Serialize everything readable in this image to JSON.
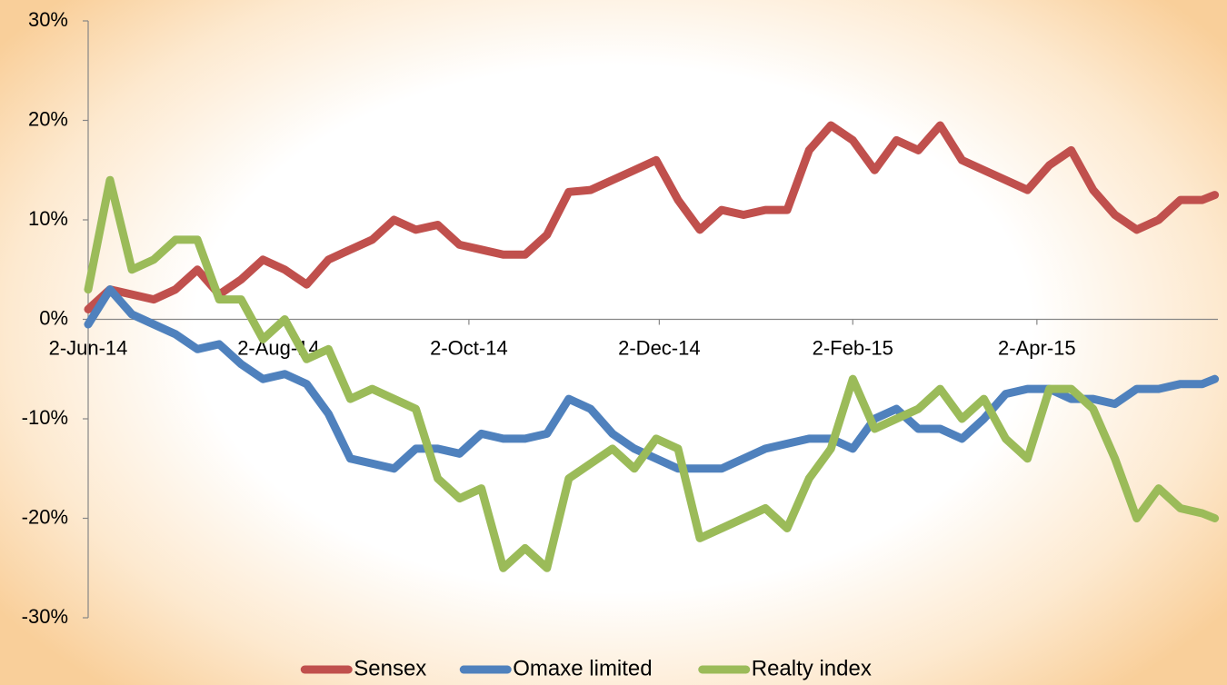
{
  "chart_data": {
    "type": "line",
    "x": [
      "2014-06-02",
      "2014-06-09",
      "2014-06-16",
      "2014-06-23",
      "2014-06-30",
      "2014-07-07",
      "2014-07-14",
      "2014-07-21",
      "2014-07-28",
      "2014-08-04",
      "2014-08-11",
      "2014-08-18",
      "2014-08-25",
      "2014-09-01",
      "2014-09-08",
      "2014-09-15",
      "2014-09-22",
      "2014-09-29",
      "2014-10-06",
      "2014-10-13",
      "2014-10-20",
      "2014-10-27",
      "2014-11-03",
      "2014-11-10",
      "2014-11-17",
      "2014-11-24",
      "2014-12-01",
      "2014-12-08",
      "2014-12-15",
      "2014-12-22",
      "2014-12-29",
      "2015-01-05",
      "2015-01-12",
      "2015-01-19",
      "2015-01-26",
      "2015-02-02",
      "2015-02-09",
      "2015-02-16",
      "2015-02-23",
      "2015-03-02",
      "2015-03-09",
      "2015-03-16",
      "2015-03-23",
      "2015-03-30",
      "2015-04-06",
      "2015-04-13",
      "2015-04-20",
      "2015-04-27",
      "2015-05-04",
      "2015-05-11",
      "2015-05-18",
      "2015-05-25",
      "2015-05-29"
    ],
    "series": [
      {
        "name": "Sensex",
        "color": "#c0504d",
        "values": [
          1,
          3,
          2.5,
          2,
          3,
          5,
          2.5,
          4,
          6,
          5,
          3.5,
          6,
          7,
          8,
          10,
          9,
          9.5,
          7.5,
          7,
          6.5,
          6.5,
          8.5,
          12.8,
          13,
          14,
          15,
          16,
          12,
          9,
          11,
          10.5,
          11,
          11,
          17,
          19.5,
          18,
          15,
          18,
          17,
          19.5,
          16,
          15,
          14,
          13,
          15.5,
          17,
          13,
          10.5,
          9,
          10,
          12,
          12,
          12.5
        ]
      },
      {
        "name": "Omaxe limited",
        "color": "#4f81bd",
        "values": [
          -0.5,
          3,
          0.5,
          -0.5,
          -1.5,
          -3,
          -2.5,
          -4.5,
          -6,
          -5.5,
          -6.5,
          -9.5,
          -14,
          -14.5,
          -15,
          -13,
          -13,
          -13.5,
          -11.5,
          -12,
          -12,
          -11.5,
          -8,
          -9,
          -11.5,
          -13,
          -14,
          -15,
          -15,
          -15,
          -14,
          -13,
          -12.5,
          -12,
          -12,
          -13,
          -10,
          -9,
          -11,
          -11,
          -12,
          -10,
          -7.5,
          -7,
          -7,
          -8,
          -8,
          -8.5,
          -7,
          -7,
          -6.5,
          -6.5,
          -6
        ]
      },
      {
        "name": "Realty index",
        "color": "#9bbb59",
        "values": [
          3,
          14,
          5,
          6,
          8,
          8,
          2,
          2,
          -2,
          0,
          -4,
          -3,
          -8,
          -7,
          -8,
          -9,
          -16,
          -18,
          -17,
          -25,
          -23,
          -25,
          -16,
          -14.5,
          -13,
          -15,
          -12,
          -13,
          -22,
          -21,
          -20,
          -19,
          -21,
          -16,
          -13,
          -6,
          -11,
          -10,
          -9,
          -7,
          -10,
          -8,
          -12,
          -14,
          -7,
          -7,
          -9,
          -14,
          -20,
          -17,
          -19,
          -19.5,
          -20
        ]
      }
    ],
    "xlim": [
      "2014-06-02",
      "2015-05-30"
    ],
    "xticks": [
      {
        "value": "2014-06-02",
        "label": "2-Jun-14"
      },
      {
        "value": "2014-08-02",
        "label": "2-Aug-14"
      },
      {
        "value": "2014-10-02",
        "label": "2-Oct-14"
      },
      {
        "value": "2014-12-02",
        "label": "2-Dec-14"
      },
      {
        "value": "2015-02-02",
        "label": "2-Feb-15"
      },
      {
        "value": "2015-04-02",
        "label": "2-Apr-15"
      }
    ],
    "ylim": [
      -30,
      30
    ],
    "yticks": [
      {
        "value": -30,
        "label": "-30%"
      },
      {
        "value": -20,
        "label": "-20%"
      },
      {
        "value": -10,
        "label": "-10%"
      },
      {
        "value": 0,
        "label": "0%"
      },
      {
        "value": 10,
        "label": "10%"
      },
      {
        "value": 20,
        "label": "20%"
      },
      {
        "value": 30,
        "label": "30%"
      }
    ],
    "legend": "bottom"
  }
}
